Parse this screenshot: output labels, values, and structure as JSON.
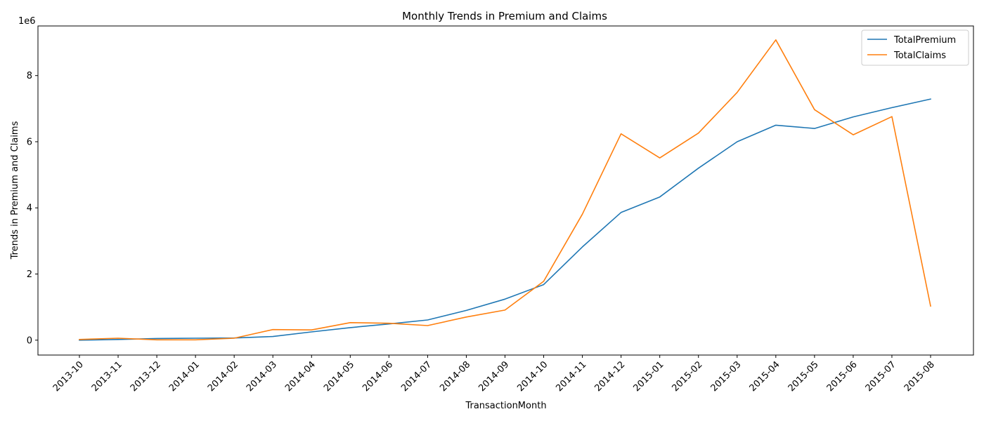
{
  "chart_data": {
    "type": "line",
    "title": "Monthly Trends in Premium and Claims",
    "xlabel": "TransactionMonth",
    "ylabel": "Trends in Premium and Claims",
    "y_offset_label": "1e6",
    "y_scale": 1000000,
    "ylim": [
      -450000,
      9500000
    ],
    "yticks": [
      0,
      2000000,
      4000000,
      6000000,
      8000000
    ],
    "ytick_labels": [
      "0",
      "2",
      "4",
      "6",
      "8"
    ],
    "grid": false,
    "legend_position": "top-right",
    "categories": [
      "2013-10",
      "2013-11",
      "2013-12",
      "2014-01",
      "2014-02",
      "2014-03",
      "2014-04",
      "2014-05",
      "2014-06",
      "2014-07",
      "2014-08",
      "2014-09",
      "2014-10",
      "2014-11",
      "2014-12",
      "2015-01",
      "2015-02",
      "2015-03",
      "2015-04",
      "2015-05",
      "2015-06",
      "2015-07",
      "2015-08"
    ],
    "series": [
      {
        "name": "TotalPremium",
        "color": "#1f77b4",
        "values": [
          0,
          20000,
          50000,
          60000,
          65000,
          110000,
          250000,
          380000,
          490000,
          610000,
          900000,
          1240000,
          1680000,
          2820000,
          3860000,
          4330000,
          5200000,
          6000000,
          6500000,
          6400000,
          6750000,
          7030000,
          7290000
        ]
      },
      {
        "name": "TotalClaims",
        "color": "#ff7f0e",
        "values": [
          20000,
          60000,
          10000,
          10000,
          60000,
          320000,
          310000,
          530000,
          510000,
          440000,
          700000,
          910000,
          1780000,
          3810000,
          6240000,
          5510000,
          6260000,
          7490000,
          9080000,
          6970000,
          6210000,
          6760000,
          1030000
        ]
      }
    ]
  }
}
